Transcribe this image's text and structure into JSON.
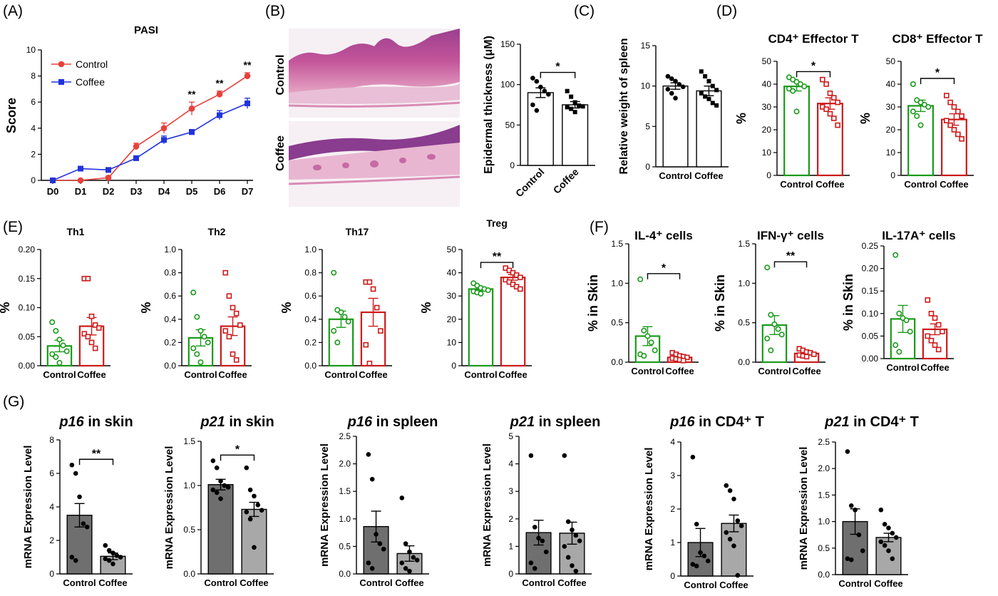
{
  "panel_labels": [
    "(A)",
    "(B)",
    "(C)",
    "(D)",
    "(E)",
    "(F)",
    "(G)"
  ],
  "colors": {
    "control": "#e8403c",
    "coffee": "#2233dd",
    "green": "#1a9a1a",
    "red": "#cc1a1a",
    "dark_bar": "#6f6f6f",
    "light_bar": "#a8a8a8"
  },
  "histology": {
    "row_labels": [
      "Control",
      "Coffee"
    ]
  },
  "chart_data": [
    {
      "id": "pasi",
      "type": "line",
      "title": "PASI",
      "xlabel": "",
      "ylabel": "Score",
      "categories": [
        "D0",
        "D1",
        "D2",
        "D3",
        "D4",
        "D5",
        "D6",
        "D7"
      ],
      "ylim": [
        0,
        10
      ],
      "yticks": [
        0,
        2,
        4,
        6,
        8,
        10
      ],
      "legend": "top-left",
      "series": [
        {
          "name": "Control",
          "values": [
            0,
            0,
            0.2,
            2.6,
            4.0,
            5.5,
            6.6,
            8.0
          ],
          "err": [
            0,
            0,
            0.1,
            0.25,
            0.4,
            0.5,
            0.25,
            0.25
          ]
        },
        {
          "name": "Coffee",
          "values": [
            0,
            0.9,
            0.8,
            1.7,
            3.1,
            3.7,
            5.0,
            5.9
          ],
          "err": [
            0,
            0.05,
            0.1,
            0.15,
            0.3,
            0.2,
            0.35,
            0.4
          ]
        }
      ],
      "annotations": [
        {
          "x": "D5",
          "text": "**"
        },
        {
          "x": "D6",
          "text": "**"
        },
        {
          "x": "D7",
          "text": "**"
        }
      ]
    },
    {
      "id": "epidermal",
      "type": "bar",
      "title": "",
      "ylabel": "Epidermal thickness (μM)",
      "categories": [
        "Control",
        "Coffee"
      ],
      "ylim": [
        0,
        150
      ],
      "yticks": [
        0,
        50,
        100,
        150
      ],
      "values": [
        90,
        75
      ],
      "err": [
        6,
        4
      ],
      "points": [
        [
          108,
          104,
          97,
          92,
          88,
          75,
          68
        ],
        [
          92,
          85,
          78,
          74,
          73,
          72,
          70,
          66
        ]
      ],
      "significance": "*"
    },
    {
      "id": "spleen",
      "type": "bar",
      "title": "",
      "ylabel": "Relative weight of spleen",
      "categories": [
        "Control",
        "Coffee"
      ],
      "ylim": [
        0,
        15
      ],
      "yticks": [
        0,
        5,
        10,
        15
      ],
      "values": [
        10.0,
        9.4
      ],
      "err": [
        0.4,
        0.6
      ],
      "points": [
        [
          11.2,
          10.9,
          10.6,
          10.2,
          9.9,
          9.6,
          9.1,
          8.5
        ],
        [
          11.8,
          11.2,
          10.6,
          10.0,
          9.5,
          9.1,
          8.7,
          8.4,
          7.9,
          7.6
        ]
      ],
      "significance": ""
    },
    {
      "id": "cd4eff",
      "type": "bar",
      "title": "CD4⁺ Effector T",
      "ylabel": "%",
      "categories": [
        "Control",
        "Coffee"
      ],
      "ylim": [
        0,
        50
      ],
      "yticks": [
        0,
        10,
        20,
        30,
        40,
        50
      ],
      "values": [
        39,
        31.5
      ],
      "err": [
        2,
        2.5
      ],
      "points": [
        [
          43,
          42,
          41,
          40,
          39,
          38,
          37,
          28
        ],
        [
          42,
          40,
          36,
          34,
          32,
          30,
          29,
          27,
          25,
          22
        ]
      ],
      "significance": "*"
    },
    {
      "id": "cd8eff",
      "type": "bar",
      "title": "CD8⁺ Effector T",
      "ylabel": "%",
      "categories": [
        "Control",
        "Coffee"
      ],
      "ylim": [
        0,
        50
      ],
      "yticks": [
        0,
        10,
        20,
        30,
        40,
        50
      ],
      "values": [
        30.5,
        24.5
      ],
      "err": [
        2.5,
        2.5
      ],
      "points": [
        [
          40,
          33,
          32,
          31,
          30,
          28,
          26,
          22
        ],
        [
          35,
          32,
          30,
          28,
          26,
          24,
          22,
          20,
          18,
          16
        ]
      ],
      "significance": "*"
    },
    {
      "id": "th1",
      "type": "bar",
      "title": "Th1",
      "ylabel": "%",
      "categories": [
        "Control",
        "Coffee"
      ],
      "ylim": [
        0,
        0.2
      ],
      "yticks": [
        "0.00",
        "0.05",
        "0.10",
        "0.15",
        "0.20"
      ],
      "values": [
        0.034,
        0.068
      ],
      "err": [
        0.01,
        0.015
      ],
      "points": [
        [
          0.075,
          0.06,
          0.045,
          0.035,
          0.025,
          0.02,
          0.015,
          0.005
        ],
        [
          0.15,
          0.15,
          0.085,
          0.07,
          0.065,
          0.055,
          0.05,
          0.04,
          0.03
        ]
      ],
      "significance": ""
    },
    {
      "id": "th2",
      "type": "bar",
      "title": "Th2",
      "ylabel": "%",
      "categories": [
        "Control",
        "Coffee"
      ],
      "ylim": [
        0,
        1.0
      ],
      "yticks": [
        "0.0",
        "0.2",
        "0.4",
        "0.6",
        "0.8",
        "1.0"
      ],
      "values": [
        0.24,
        0.34
      ],
      "err": [
        0.07,
        0.08
      ],
      "points": [
        [
          0.63,
          0.42,
          0.3,
          0.25,
          0.2,
          0.15,
          0.1,
          0.03
        ],
        [
          0.8,
          0.6,
          0.5,
          0.45,
          0.35,
          0.3,
          0.25,
          0.1,
          0.05
        ]
      ],
      "significance": ""
    },
    {
      "id": "th17",
      "type": "bar",
      "title": "Th17",
      "ylabel": "%",
      "categories": [
        "Control",
        "Coffee"
      ],
      "ylim": [
        0,
        1.0
      ],
      "yticks": [
        "0.0",
        "0.2",
        "0.4",
        "0.6",
        "0.8",
        "1.0"
      ],
      "values": [
        0.4,
        0.46
      ],
      "err": [
        0.07,
        0.12
      ],
      "points": [
        [
          0.8,
          0.48,
          0.46,
          0.42,
          0.38,
          0.3,
          0.2
        ],
        [
          0.72,
          0.72,
          0.66,
          0.5,
          0.3,
          0.18,
          0.02
        ]
      ],
      "significance": ""
    },
    {
      "id": "treg",
      "type": "bar",
      "title": "Treg",
      "ylabel": "%",
      "categories": [
        "Control",
        "Coffee"
      ],
      "ylim": [
        0,
        50
      ],
      "yticks": [
        0,
        10,
        20,
        30,
        40,
        50
      ],
      "values": [
        33,
        38
      ],
      "err": [
        0.8,
        1.2
      ],
      "points": [
        [
          35.5,
          34.5,
          33.5,
          33,
          32.5,
          32,
          31.5,
          31
        ],
        [
          42,
          41,
          40,
          39,
          38,
          37,
          36,
          35,
          34,
          33
        ]
      ],
      "significance": "**"
    },
    {
      "id": "il4",
      "type": "bar",
      "title": "IL-4⁺ cells",
      "ylabel": "% in Skin",
      "categories": [
        "Control",
        "Coffee"
      ],
      "ylim": [
        0,
        1.5
      ],
      "yticks": [
        "0.0",
        "0.5",
        "1.0",
        "1.5"
      ],
      "values": [
        0.33,
        0.06
      ],
      "err": [
        0.12,
        0.02
      ],
      "points": [
        [
          1.05,
          0.4,
          0.33,
          0.25,
          0.15,
          0.1,
          0.08
        ],
        [
          0.12,
          0.1,
          0.08,
          0.07,
          0.06,
          0.05,
          0.04,
          0.03,
          0.02
        ]
      ],
      "significance": "*"
    },
    {
      "id": "ifng",
      "type": "bar",
      "title": "IFN-γ⁺ cells",
      "ylabel": "% in Skin",
      "categories": [
        "Control",
        "Coffee"
      ],
      "ylim": [
        0,
        1.5
      ],
      "yticks": [
        "0.0",
        "0.5",
        "1.0",
        "1.5"
      ],
      "values": [
        0.47,
        0.11
      ],
      "err": [
        0.12,
        0.02
      ],
      "points": [
        [
          1.2,
          0.6,
          0.48,
          0.42,
          0.35,
          0.3,
          0.15
        ],
        [
          0.17,
          0.15,
          0.13,
          0.12,
          0.1,
          0.09,
          0.08,
          0.07
        ]
      ],
      "significance": "**"
    },
    {
      "id": "il17a",
      "type": "bar",
      "title": "IL-17A⁺ cells",
      "ylabel": "% in Skin",
      "categories": [
        "Control",
        "Coffee"
      ],
      "ylim": [
        0,
        0.25
      ],
      "yticks": [
        "0.00",
        "0.05",
        "0.10",
        "0.15",
        "0.20",
        "0.25"
      ],
      "values": [
        0.088,
        0.065
      ],
      "err": [
        0.03,
        0.012
      ],
      "points": [
        [
          0.23,
          0.1,
          0.09,
          0.085,
          0.06,
          0.03,
          0.015
        ],
        [
          0.13,
          0.1,
          0.09,
          0.075,
          0.06,
          0.05,
          0.04,
          0.03,
          0.02
        ]
      ],
      "significance": ""
    },
    {
      "id": "p16skin",
      "type": "bar",
      "title_italic": "p16",
      "title_rest": " in skin",
      "ylabel": "mRNA Expression Level",
      "categories": [
        "Control",
        "Coffee"
      ],
      "ylim": [
        0,
        8
      ],
      "yticks": [
        0,
        2,
        4,
        6,
        8
      ],
      "values": [
        3.5,
        1.05
      ],
      "err": [
        0.7,
        0.2
      ],
      "points": [
        [
          6.5,
          6.0,
          4.6,
          3.0,
          2.8,
          1.0,
          0.8
        ],
        [
          1.7,
          1.4,
          1.25,
          1.1,
          1.0,
          0.9,
          0.8,
          0.6
        ]
      ],
      "significance": "**"
    },
    {
      "id": "p21skin",
      "type": "bar",
      "title_italic": "p21",
      "title_rest": " in skin",
      "ylabel": "mRNA Expression Level",
      "categories": [
        "Control",
        "Coffee"
      ],
      "ylim": [
        0,
        1.5
      ],
      "yticks": [
        "0.0",
        "0.5",
        "1.0",
        "1.5"
      ],
      "values": [
        1.01,
        0.73
      ],
      "err": [
        0.06,
        0.08
      ],
      "points": [
        [
          1.28,
          1.2,
          1.05,
          1.0,
          0.98,
          0.95,
          0.92,
          0.85
        ],
        [
          1.2,
          0.95,
          0.88,
          0.78,
          0.72,
          0.7,
          0.62,
          0.3
        ]
      ],
      "significance": "*"
    },
    {
      "id": "p16spleen",
      "type": "bar",
      "title_italic": "p16",
      "title_rest": " in spleen",
      "ylabel": "mRNA Expression Level",
      "categories": [
        "Control",
        "Coffee"
      ],
      "ylim": [
        0,
        2.5
      ],
      "yticks": [
        "0.0",
        "0.5",
        "1.0",
        "1.5",
        "2.0",
        "2.5"
      ],
      "values": [
        0.86,
        0.37
      ],
      "err": [
        0.28,
        0.14
      ],
      "points": [
        [
          2.17,
          1.72,
          0.72,
          0.55,
          0.45,
          0.2,
          0.1
        ],
        [
          1.38,
          0.55,
          0.4,
          0.3,
          0.25,
          0.2,
          0.1,
          0.05
        ]
      ],
      "significance": ""
    },
    {
      "id": "p21spleen",
      "type": "bar",
      "title_italic": "p21",
      "title_rest": " in spleen",
      "ylabel": "mRNA Expression Level",
      "categories": [
        "Control",
        "Coffee"
      ],
      "ylim": [
        0,
        5
      ],
      "yticks": [
        0,
        1,
        2,
        3,
        4,
        5
      ],
      "values": [
        1.5,
        1.48
      ],
      "err": [
        0.45,
        0.4
      ],
      "points": [
        [
          4.3,
          1.7,
          1.3,
          1.2,
          0.8,
          0.4,
          0.2
        ],
        [
          4.3,
          1.9,
          1.6,
          1.4,
          1.2,
          1.0,
          0.6,
          0.3,
          0.1
        ]
      ],
      "significance": ""
    },
    {
      "id": "p16cd4",
      "type": "bar",
      "title_italic": "p16",
      "title_rest": " in CD4⁺ T",
      "ylabel": "mRNA Expression Level",
      "categories": [
        "Control",
        "Coffee"
      ],
      "ylim": [
        0,
        4
      ],
      "yticks": [
        0,
        1,
        2,
        3,
        4
      ],
      "values": [
        1.0,
        1.57
      ],
      "err": [
        0.42,
        0.25
      ],
      "points": [
        [
          3.55,
          1.55,
          0.7,
          0.6,
          0.45,
          0.35,
          0.3
        ],
        [
          2.7,
          2.55,
          2.3,
          1.65,
          1.5,
          1.3,
          1.1,
          0.9,
          0.02
        ]
      ],
      "significance": ""
    },
    {
      "id": "p21cd4",
      "type": "bar",
      "title_italic": "p21",
      "title_rest": " in CD4⁺ T",
      "ylabel": "mRNA Expression Level",
      "categories": [
        "Control",
        "Coffee"
      ],
      "ylim": [
        0,
        2.5
      ],
      "yticks": [
        "0.0",
        "0.5",
        "1.0",
        "1.5",
        "2.0",
        "2.5"
      ],
      "values": [
        1.0,
        0.7
      ],
      "err": [
        0.24,
        0.08
      ],
      "points": [
        [
          2.32,
          1.3,
          1.22,
          0.75,
          0.45,
          0.3,
          0.28
        ],
        [
          1.22,
          0.95,
          0.88,
          0.78,
          0.7,
          0.62,
          0.55,
          0.45,
          0.3
        ]
      ],
      "significance": ""
    }
  ]
}
